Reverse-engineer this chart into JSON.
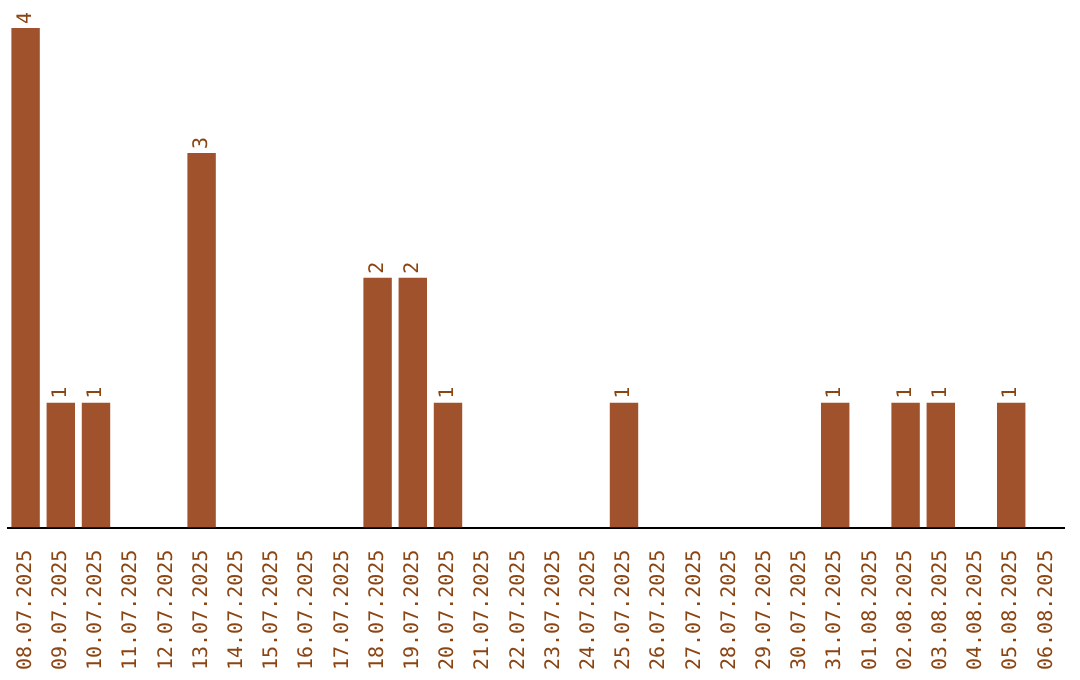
{
  "chart_data": {
    "type": "bar",
    "categories": [
      "08.07.2025",
      "09.07.2025",
      "10.07.2025",
      "11.07.2025",
      "12.07.2025",
      "13.07.2025",
      "14.07.2025",
      "15.07.2025",
      "16.07.2025",
      "17.07.2025",
      "18.07.2025",
      "19.07.2025",
      "20.07.2025",
      "21.07.2025",
      "22.07.2025",
      "23.07.2025",
      "24.07.2025",
      "25.07.2025",
      "26.07.2025",
      "27.07.2025",
      "28.07.2025",
      "29.07.2025",
      "30.07.2025",
      "31.07.2025",
      "01.08.2025",
      "02.08.2025",
      "03.08.2025",
      "04.08.2025",
      "05.08.2025",
      "06.08.2025"
    ],
    "values": [
      4,
      1,
      1,
      0,
      0,
      3,
      0,
      0,
      0,
      0,
      2,
      2,
      1,
      0,
      0,
      0,
      0,
      1,
      0,
      0,
      0,
      0,
      0,
      1,
      0,
      1,
      1,
      0,
      1,
      0
    ],
    "value_labels": [
      "4",
      "1",
      "1",
      null,
      null,
      "3",
      null,
      null,
      null,
      null,
      "2",
      "2",
      "1",
      null,
      null,
      null,
      null,
      "1",
      null,
      null,
      null,
      null,
      null,
      "1",
      null,
      "1",
      "1",
      null,
      "1",
      null
    ],
    "color": "#a0522d",
    "grid": false,
    "legend": false,
    "tick_labels": "x"
  }
}
